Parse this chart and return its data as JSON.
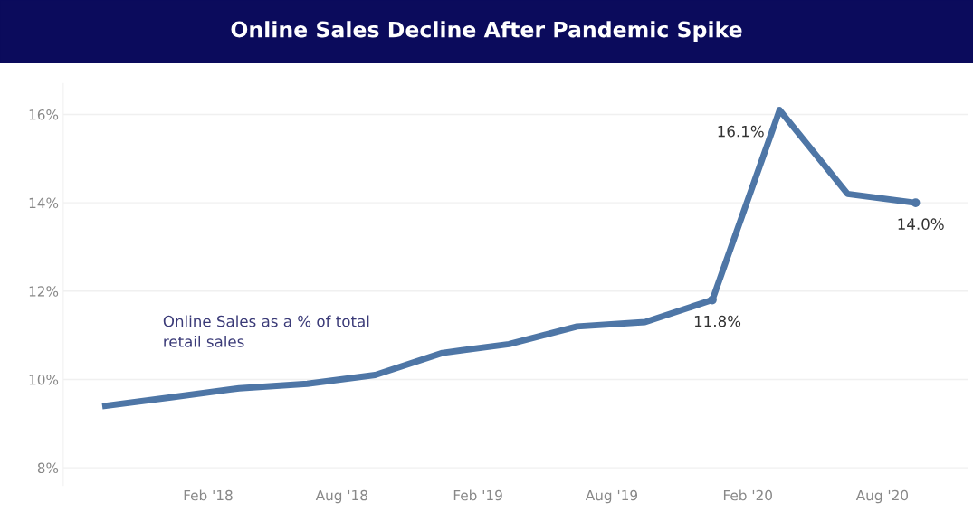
{
  "chart_data": {
    "type": "line",
    "title": "Online Sales Decline After Pandemic Spike",
    "x": [
      "2017-09-15",
      "2017-12-15",
      "2018-03-15",
      "2018-06-15",
      "2018-09-15",
      "2018-12-15",
      "2019-03-15",
      "2019-06-15",
      "2019-09-15",
      "2019-12-15",
      "2020-03-15",
      "2020-06-15",
      "2020-09-15"
    ],
    "series": [
      {
        "color": "#4e76a6",
        "values": [
          9.4,
          9.6,
          9.8,
          9.9,
          10.1,
          10.6,
          10.8,
          11.2,
          11.3,
          11.8,
          16.1,
          14.2,
          14.0
        ],
        "value_labels": [
          null,
          null,
          null,
          null,
          null,
          null,
          null,
          null,
          null,
          "11.8%",
          "16.1%",
          null,
          "14.0%"
        ]
      }
    ],
    "xlim": [
      "2017-07-20",
      "2020-11-25"
    ],
    "xticks": [
      {
        "value": "2018-02-01",
        "label": "Feb '18"
      },
      {
        "value": "2018-08-01",
        "label": "Aug '18"
      },
      {
        "value": "2019-02-01",
        "label": "Feb '19"
      },
      {
        "value": "2019-08-01",
        "label": "Aug '19"
      },
      {
        "value": "2020-02-01",
        "label": "Feb '20"
      },
      {
        "value": "2020-08-01",
        "label": "Aug '20"
      }
    ],
    "ylim": [
      7.6,
      16.7
    ],
    "yticks": [
      {
        "value": 8,
        "label": "8%"
      },
      {
        "value": 10,
        "label": "10%"
      },
      {
        "value": 12,
        "label": "12%"
      },
      {
        "value": 14,
        "label": "14%"
      },
      {
        "value": 16,
        "label": "16%"
      }
    ],
    "grid": "y",
    "annotations": [
      "Online Sales as a % of total\nretail sales"
    ]
  }
}
